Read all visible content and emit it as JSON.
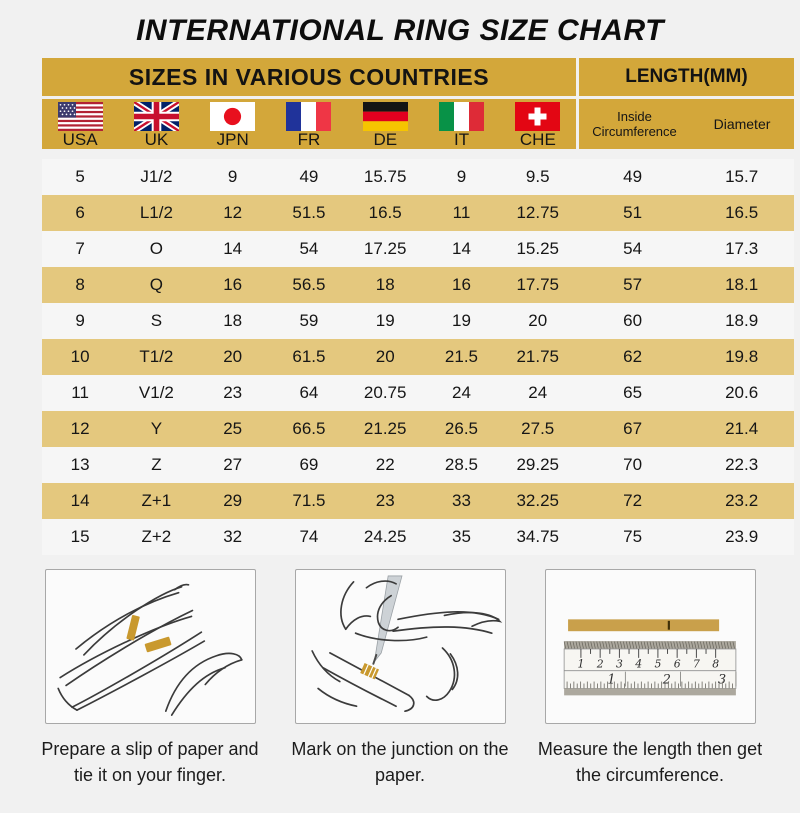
{
  "title": "INTERNATIONAL RING SIZE CHART",
  "header": {
    "countries": "SIZES IN VARIOUS COUNTRIES",
    "length": "LENGTH(MM)"
  },
  "flags": [
    {
      "label": "USA",
      "icon": "usa-flag-icon"
    },
    {
      "label": "UK",
      "icon": "uk-flag-icon"
    },
    {
      "label": "JPN",
      "icon": "japan-flag-icon"
    },
    {
      "label": "FR",
      "icon": "france-flag-icon"
    },
    {
      "label": "DE",
      "icon": "germany-flag-icon"
    },
    {
      "label": "IT",
      "icon": "italy-flag-icon"
    },
    {
      "label": "CHE",
      "icon": "switzerland-flag-icon"
    }
  ],
  "length_subheaders": [
    {
      "label": "Inside Circumference"
    },
    {
      "label": "Diameter"
    }
  ],
  "chart_data": {
    "type": "table",
    "title": "INTERNATIONAL RING SIZE CHART",
    "section_headers": [
      "SIZES IN VARIOUS COUNTRIES",
      "LENGTH(MM)"
    ],
    "columns": [
      "USA",
      "UK",
      "JPN",
      "FR",
      "DE",
      "IT",
      "CHE",
      "Inside Circumference",
      "Diameter"
    ],
    "rows": [
      [
        "5",
        "J1/2",
        "9",
        "49",
        "15.75",
        "9",
        "9.5",
        "49",
        "15.7"
      ],
      [
        "6",
        "L1/2",
        "12",
        "51.5",
        "16.5",
        "11",
        "12.75",
        "51",
        "16.5"
      ],
      [
        "7",
        "O",
        "14",
        "54",
        "17.25",
        "14",
        "15.25",
        "54",
        "17.3"
      ],
      [
        "8",
        "Q",
        "16",
        "56.5",
        "18",
        "16",
        "17.75",
        "57",
        "18.1"
      ],
      [
        "9",
        "S",
        "18",
        "59",
        "19",
        "19",
        "20",
        "60",
        "18.9"
      ],
      [
        "10",
        "T1/2",
        "20",
        "61.5",
        "20",
        "21.5",
        "21.75",
        "62",
        "19.8"
      ],
      [
        "11",
        "V1/2",
        "23",
        "64",
        "20.75",
        "24",
        "24",
        "65",
        "20.6"
      ],
      [
        "12",
        "Y",
        "25",
        "66.5",
        "21.25",
        "26.5",
        "27.5",
        "67",
        "21.4"
      ],
      [
        "13",
        "Z",
        "27",
        "69",
        "22",
        "28.5",
        "29.25",
        "70",
        "22.3"
      ],
      [
        "14",
        "Z+1",
        "29",
        "71.5",
        "23",
        "33",
        "32.25",
        "72",
        "23.2"
      ],
      [
        "15",
        "Z+2",
        "32",
        "74",
        "24.25",
        "35",
        "34.75",
        "75",
        "23.9"
      ]
    ]
  },
  "steps": [
    {
      "icon": "hand-with-paper-strip-illustration",
      "caption": "Prepare a slip of paper and tie it on your finger."
    },
    {
      "icon": "pen-marking-junction-illustration",
      "caption": "Mark on the junction on the paper."
    },
    {
      "icon": "ruler-measuring-strip-illustration",
      "caption": "Measure the length then get the circumference."
    }
  ],
  "ruler": {
    "top_scale": [
      "1",
      "2",
      "3",
      "4",
      "5",
      "6",
      "7",
      "8"
    ],
    "bottom_scale": [
      "1",
      "2",
      "3"
    ]
  },
  "colors": {
    "gold_header": "#D3A73A",
    "tan_row": "#E4C87E",
    "page_background": "#F1F1F1"
  }
}
